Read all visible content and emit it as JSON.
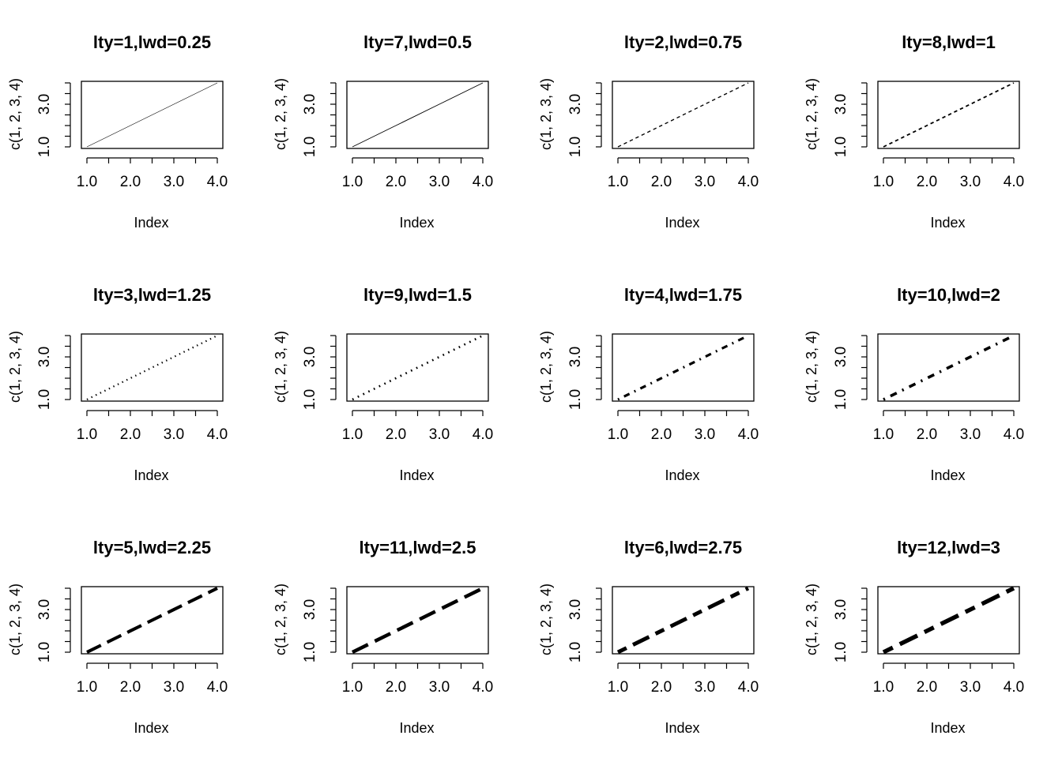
{
  "chart_data": [
    {
      "type": "line",
      "title": "lty=1,lwd=0.25",
      "xlabel": "Index",
      "ylabel": "c(1, 2, 3, 4)",
      "x": [
        1,
        2,
        3,
        4
      ],
      "y": [
        1,
        2,
        3,
        4
      ],
      "xlim": [
        1,
        4
      ],
      "ylim": [
        1,
        4
      ],
      "xticks": [
        "1.0",
        "2.0",
        "3.0",
        "4.0"
      ],
      "yticks": [
        "1.0",
        "3.0"
      ],
      "lty": 1,
      "lwd": 0.25
    },
    {
      "type": "line",
      "title": "lty=7,lwd=0.5",
      "xlabel": "Index",
      "ylabel": "c(1, 2, 3, 4)",
      "x": [
        1,
        2,
        3,
        4
      ],
      "y": [
        1,
        2,
        3,
        4
      ],
      "xlim": [
        1,
        4
      ],
      "ylim": [
        1,
        4
      ],
      "xticks": [
        "1.0",
        "2.0",
        "3.0",
        "4.0"
      ],
      "yticks": [
        "1.0",
        "3.0"
      ],
      "lty": 7,
      "lwd": 0.5
    },
    {
      "type": "line",
      "title": "lty=2,lwd=0.75",
      "xlabel": "Index",
      "ylabel": "c(1, 2, 3, 4)",
      "x": [
        1,
        2,
        3,
        4
      ],
      "y": [
        1,
        2,
        3,
        4
      ],
      "xlim": [
        1,
        4
      ],
      "ylim": [
        1,
        4
      ],
      "xticks": [
        "1.0",
        "2.0",
        "3.0",
        "4.0"
      ],
      "yticks": [
        "1.0",
        "3.0"
      ],
      "lty": 2,
      "lwd": 0.75
    },
    {
      "type": "line",
      "title": "lty=8,lwd=1",
      "xlabel": "Index",
      "ylabel": "c(1, 2, 3, 4)",
      "x": [
        1,
        2,
        3,
        4
      ],
      "y": [
        1,
        2,
        3,
        4
      ],
      "xlim": [
        1,
        4
      ],
      "ylim": [
        1,
        4
      ],
      "xticks": [
        "1.0",
        "2.0",
        "3.0",
        "4.0"
      ],
      "yticks": [
        "1.0",
        "3.0"
      ],
      "lty": 8,
      "lwd": 1
    },
    {
      "type": "line",
      "title": "lty=3,lwd=1.25",
      "xlabel": "Index",
      "ylabel": "c(1, 2, 3, 4)",
      "x": [
        1,
        2,
        3,
        4
      ],
      "y": [
        1,
        2,
        3,
        4
      ],
      "xlim": [
        1,
        4
      ],
      "ylim": [
        1,
        4
      ],
      "xticks": [
        "1.0",
        "2.0",
        "3.0",
        "4.0"
      ],
      "yticks": [
        "1.0",
        "3.0"
      ],
      "lty": 3,
      "lwd": 1.25
    },
    {
      "type": "line",
      "title": "lty=9,lwd=1.5",
      "xlabel": "Index",
      "ylabel": "c(1, 2, 3, 4)",
      "x": [
        1,
        2,
        3,
        4
      ],
      "y": [
        1,
        2,
        3,
        4
      ],
      "xlim": [
        1,
        4
      ],
      "ylim": [
        1,
        4
      ],
      "xticks": [
        "1.0",
        "2.0",
        "3.0",
        "4.0"
      ],
      "yticks": [
        "1.0",
        "3.0"
      ],
      "lty": 9,
      "lwd": 1.5
    },
    {
      "type": "line",
      "title": "lty=4,lwd=1.75",
      "xlabel": "Index",
      "ylabel": "c(1, 2, 3, 4)",
      "x": [
        1,
        2,
        3,
        4
      ],
      "y": [
        1,
        2,
        3,
        4
      ],
      "xlim": [
        1,
        4
      ],
      "ylim": [
        1,
        4
      ],
      "xticks": [
        "1.0",
        "2.0",
        "3.0",
        "4.0"
      ],
      "yticks": [
        "1.0",
        "3.0"
      ],
      "lty": 4,
      "lwd": 1.75
    },
    {
      "type": "line",
      "title": "lty=10,lwd=2",
      "xlabel": "Index",
      "ylabel": "c(1, 2, 3, 4)",
      "x": [
        1,
        2,
        3,
        4
      ],
      "y": [
        1,
        2,
        3,
        4
      ],
      "xlim": [
        1,
        4
      ],
      "ylim": [
        1,
        4
      ],
      "xticks": [
        "1.0",
        "2.0",
        "3.0",
        "4.0"
      ],
      "yticks": [
        "1.0",
        "3.0"
      ],
      "lty": 10,
      "lwd": 2
    },
    {
      "type": "line",
      "title": "lty=5,lwd=2.25",
      "xlabel": "Index",
      "ylabel": "c(1, 2, 3, 4)",
      "x": [
        1,
        2,
        3,
        4
      ],
      "y": [
        1,
        2,
        3,
        4
      ],
      "xlim": [
        1,
        4
      ],
      "ylim": [
        1,
        4
      ],
      "xticks": [
        "1.0",
        "2.0",
        "3.0",
        "4.0"
      ],
      "yticks": [
        "1.0",
        "3.0"
      ],
      "lty": 5,
      "lwd": 2.25
    },
    {
      "type": "line",
      "title": "lty=11,lwd=2.5",
      "xlabel": "Index",
      "ylabel": "c(1, 2, 3, 4)",
      "x": [
        1,
        2,
        3,
        4
      ],
      "y": [
        1,
        2,
        3,
        4
      ],
      "xlim": [
        1,
        4
      ],
      "ylim": [
        1,
        4
      ],
      "xticks": [
        "1.0",
        "2.0",
        "3.0",
        "4.0"
      ],
      "yticks": [
        "1.0",
        "3.0"
      ],
      "lty": 11,
      "lwd": 2.5
    },
    {
      "type": "line",
      "title": "lty=6,lwd=2.75",
      "xlabel": "Index",
      "ylabel": "c(1, 2, 3, 4)",
      "x": [
        1,
        2,
        3,
        4
      ],
      "y": [
        1,
        2,
        3,
        4
      ],
      "xlim": [
        1,
        4
      ],
      "ylim": [
        1,
        4
      ],
      "xticks": [
        "1.0",
        "2.0",
        "3.0",
        "4.0"
      ],
      "yticks": [
        "1.0",
        "3.0"
      ],
      "lty": 6,
      "lwd": 2.75
    },
    {
      "type": "line",
      "title": "lty=12,lwd=3",
      "xlabel": "Index",
      "ylabel": "c(1, 2, 3, 4)",
      "x": [
        1,
        2,
        3,
        4
      ],
      "y": [
        1,
        2,
        3,
        4
      ],
      "xlim": [
        1,
        4
      ],
      "ylim": [
        1,
        4
      ],
      "xticks": [
        "1.0",
        "2.0",
        "3.0",
        "4.0"
      ],
      "yticks": [
        "1.0",
        "3.0"
      ],
      "lty": 12,
      "lwd": 3
    }
  ]
}
